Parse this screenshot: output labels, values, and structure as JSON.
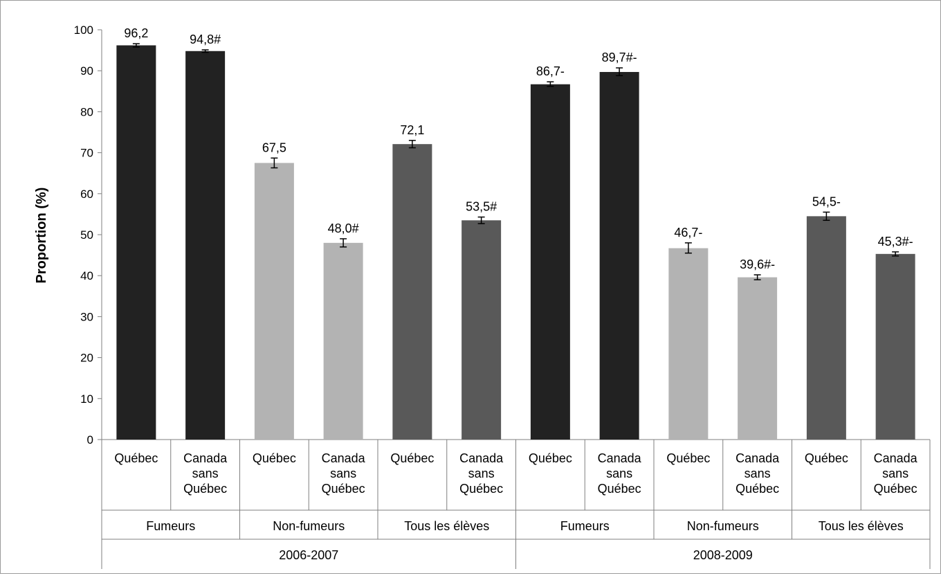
{
  "chart_data": {
    "type": "bar",
    "ylabel": "Proportion (%)",
    "ylim": [
      0,
      100
    ],
    "yticks": [
      0,
      10,
      20,
      30,
      40,
      50,
      60,
      70,
      80,
      90,
      100
    ],
    "grid": false,
    "legend": "none",
    "category_levels": {
      "years": [
        "2006-2007",
        "2008-2009"
      ],
      "groups": [
        "Fumeurs",
        "Non-fumeurs",
        "Tous les élèves"
      ],
      "regions": [
        "Québec",
        "Canada sans Québec"
      ]
    },
    "bars": [
      {
        "year": "2006-2007",
        "group": "Fumeurs",
        "region": "Québec",
        "value": 96.2,
        "label": "96,2",
        "ci": [
          95.8,
          96.6
        ],
        "color": "#222222"
      },
      {
        "year": "2006-2007",
        "group": "Fumeurs",
        "region": "Canada sans Québec",
        "value": 94.8,
        "label": "94,8#",
        "ci": [
          94.5,
          95.1
        ],
        "color": "#222222"
      },
      {
        "year": "2006-2007",
        "group": "Non-fumeurs",
        "region": "Québec",
        "value": 67.5,
        "label": "67,5",
        "ci": [
          66.3,
          68.7
        ],
        "color": "#b3b3b3"
      },
      {
        "year": "2006-2007",
        "group": "Non-fumeurs",
        "region": "Canada sans Québec",
        "value": 48.0,
        "label": "48,0#",
        "ci": [
          47.0,
          49.0
        ],
        "color": "#b3b3b3"
      },
      {
        "year": "2006-2007",
        "group": "Tous les élèves",
        "region": "Québec",
        "value": 72.1,
        "label": "72,1",
        "ci": [
          71.2,
          73.0
        ],
        "color": "#595959"
      },
      {
        "year": "2006-2007",
        "group": "Tous les élèves",
        "region": "Canada sans Québec",
        "value": 53.5,
        "label": "53,5#",
        "ci": [
          52.7,
          54.3
        ],
        "color": "#595959"
      },
      {
        "year": "2008-2009",
        "group": "Fumeurs",
        "region": "Québec",
        "value": 86.7,
        "label": "86,7-",
        "ci": [
          86.2,
          87.3
        ],
        "color": "#222222"
      },
      {
        "year": "2008-2009",
        "group": "Fumeurs",
        "region": "Canada sans Québec",
        "value": 89.7,
        "label": "89,7#-",
        "ci": [
          88.8,
          90.7
        ],
        "color": "#222222"
      },
      {
        "year": "2008-2009",
        "group": "Non-fumeurs",
        "region": "Québec",
        "value": 46.7,
        "label": "46,7-",
        "ci": [
          45.5,
          48.0
        ],
        "color": "#b3b3b3"
      },
      {
        "year": "2008-2009",
        "group": "Non-fumeurs",
        "region": "Canada sans Québec",
        "value": 39.6,
        "label": "39,6#-",
        "ci": [
          39.0,
          40.2
        ],
        "color": "#b3b3b3"
      },
      {
        "year": "2008-2009",
        "group": "Tous les élèves",
        "region": "Québec",
        "value": 54.5,
        "label": "54,5-",
        "ci": [
          53.5,
          55.5
        ],
        "color": "#595959"
      },
      {
        "year": "2008-2009",
        "group": "Tous les élèves",
        "region": "Canada sans Québec",
        "value": 45.3,
        "label": "45,3#-",
        "ci": [
          44.8,
          45.8
        ],
        "color": "#595959"
      }
    ]
  }
}
